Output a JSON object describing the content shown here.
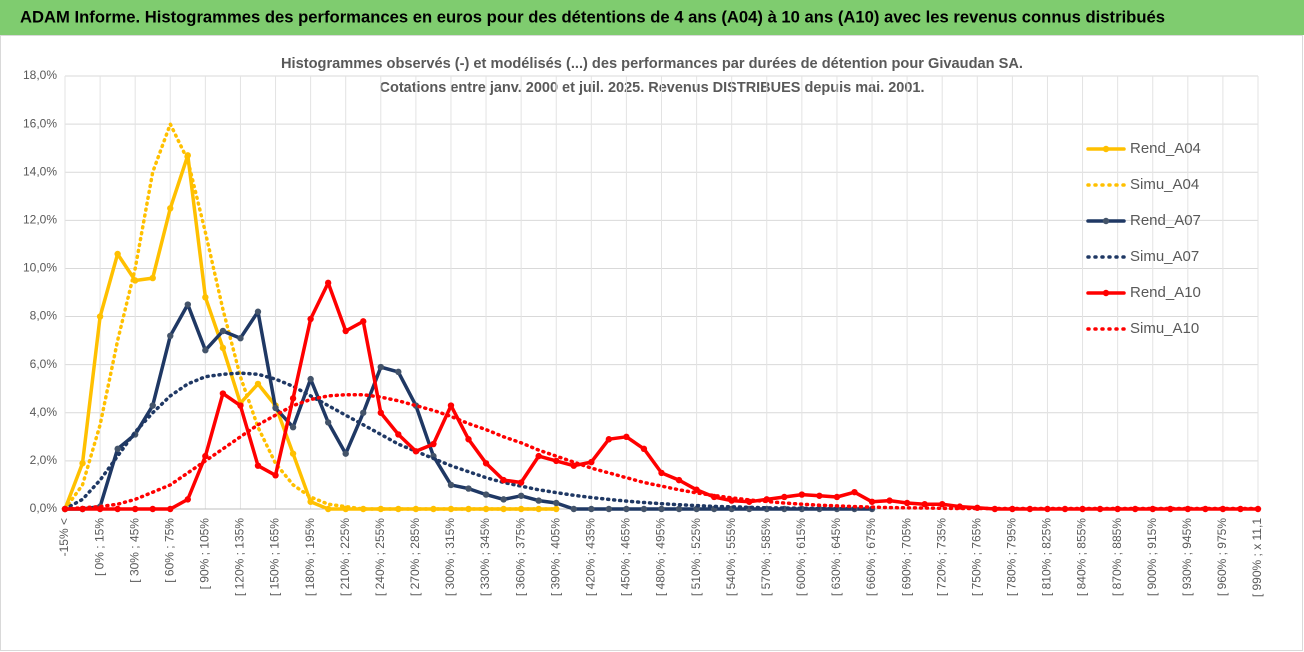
{
  "header": "ADAM Informe. Histogrammes des performances en euros pour des détentions de 4 ans (A04) à 10 ans (A10) avec les revenus connus distribués",
  "chart_data": {
    "type": "line",
    "title": [
      "Histogrammes observés (-) et modélisés (...) des performances par durées de détention pour Givaudan SA.",
      "Cotations entre janv. 2000 et juil. 2025. Revenus DISTRIBUES depuis mai. 2001."
    ],
    "categories": [
      "-15% <",
      null,
      "[ 0% ; 15%",
      null,
      "[ 30% ; 45%",
      null,
      "[ 60% ; 75%",
      null,
      "[ 90% ; 105%",
      null,
      "[ 120% ; 135%",
      null,
      "[ 150% ; 165%",
      null,
      "[ 180% ; 195%",
      null,
      "[ 210% ; 225%",
      null,
      "[ 240% ; 255%",
      null,
      "[ 270% ; 285%",
      null,
      "[ 300% ; 315%",
      null,
      "[ 330% ; 345%",
      null,
      "[ 360% ; 375%",
      null,
      "[ 390% ; 405%",
      null,
      "[ 420% ; 435%",
      null,
      "[ 450% ; 465%",
      null,
      "[ 480% ; 495%",
      null,
      "[ 510% ; 525%",
      null,
      "[ 540% ; 555%",
      null,
      "[ 570% ; 585%",
      null,
      "[ 600% ; 615%",
      null,
      "[ 630% ; 645%",
      null,
      "[ 660% ; 675%",
      null,
      "[ 690% ; 705%",
      null,
      "[ 720% ; 735%",
      null,
      "[ 750% ; 765%",
      null,
      "[ 780% ; 795%",
      null,
      "[ 810% ; 825%",
      null,
      "[ 840% ; 855%",
      null,
      "[ 870% ; 885%",
      null,
      "[ 900% ; 915%",
      null,
      "[ 930% ; 945%",
      null,
      "[ 960% ; 975%",
      null,
      "[ 990% ; x 11,1"
    ],
    "series": [
      {
        "name": "Rend_A04",
        "color": "#ffc000",
        "dotted": false,
        "markers": true,
        "values": [
          0,
          1.9,
          8.0,
          10.6,
          9.5,
          9.6,
          12.5,
          14.7,
          8.8,
          6.7,
          4.4,
          5.2,
          4.3,
          2.3,
          0.3,
          0,
          0,
          0,
          0,
          0,
          0,
          0,
          0,
          0,
          0,
          0,
          0,
          0,
          0,
          null,
          null,
          null,
          null,
          null,
          null,
          null,
          null,
          null,
          null,
          null,
          null,
          null,
          null,
          null,
          null,
          null,
          null,
          null,
          null,
          null,
          null,
          null,
          null,
          null,
          null,
          null,
          null,
          null,
          null,
          null,
          null,
          null,
          null,
          null,
          null,
          null,
          null,
          null,
          null
        ]
      },
      {
        "name": "Simu_A04",
        "color": "#ffc000",
        "dotted": true,
        "markers": false,
        "values": [
          0,
          1.0,
          3.5,
          7.0,
          10.0,
          14.0,
          16.0,
          14.5,
          11.5,
          8.3,
          5.5,
          3.4,
          1.9,
          1.0,
          0.5,
          0.2,
          0.1,
          0,
          0,
          0,
          0,
          0,
          0,
          0,
          0,
          0,
          0,
          0,
          0,
          null,
          null,
          null,
          null,
          null,
          null,
          null,
          null,
          null,
          null,
          null,
          null,
          null,
          null,
          null,
          null,
          null,
          null,
          null,
          null,
          null,
          null,
          null,
          null,
          null,
          null,
          null,
          null,
          null,
          null,
          null,
          null,
          null,
          null,
          null,
          null,
          null,
          null,
          null,
          null
        ]
      },
      {
        "name": "Rend_A07",
        "color": "#1f3864",
        "marker_color": "#44546a",
        "dotted": false,
        "markers": true,
        "values": [
          0,
          0,
          0.1,
          2.5,
          3.1,
          4.3,
          7.2,
          8.5,
          6.6,
          7.4,
          7.1,
          8.2,
          4.2,
          3.4,
          5.4,
          3.6,
          2.3,
          4.0,
          5.9,
          5.7,
          4.3,
          2.2,
          1.0,
          0.85,
          0.6,
          0.4,
          0.55,
          0.35,
          0.25,
          0,
          0,
          0,
          0,
          0,
          0,
          0,
          0,
          0,
          0,
          0,
          0,
          0,
          0,
          0,
          0,
          0,
          0,
          null,
          null,
          null,
          null,
          null,
          null,
          null,
          null,
          null,
          null,
          null,
          null,
          null,
          null,
          null,
          null,
          null,
          null,
          null,
          null,
          null,
          null
        ]
      },
      {
        "name": "Simu_A07",
        "color": "#1f3864",
        "dotted": true,
        "markers": false,
        "values": [
          0,
          0.4,
          1.2,
          2.2,
          3.2,
          4.0,
          4.7,
          5.2,
          5.5,
          5.6,
          5.65,
          5.6,
          5.4,
          5.1,
          4.7,
          4.3,
          3.9,
          3.5,
          3.1,
          2.7,
          2.4,
          2.1,
          1.8,
          1.55,
          1.3,
          1.1,
          0.95,
          0.8,
          0.68,
          0.57,
          0.48,
          0.4,
          0.33,
          0.27,
          0.22,
          0.18,
          0.14,
          0.11,
          0.09,
          0.07,
          0.05,
          0.04,
          0.03,
          0.02,
          0.02,
          0.01,
          0.01,
          null,
          null,
          null,
          null,
          null,
          null,
          null,
          null,
          null,
          null,
          null,
          null,
          null,
          null,
          null,
          null,
          null,
          null,
          null,
          null,
          null,
          null
        ]
      },
      {
        "name": "Rend_A10",
        "color": "#ff0000",
        "dotted": false,
        "markers": true,
        "values": [
          0,
          0,
          0,
          0,
          0,
          0,
          0,
          0.4,
          2.2,
          4.8,
          4.3,
          1.8,
          1.4,
          4.6,
          7.9,
          9.4,
          7.4,
          7.8,
          4.0,
          3.1,
          2.4,
          2.7,
          4.3,
          2.9,
          1.9,
          1.2,
          1.1,
          2.2,
          2.0,
          1.8,
          1.95,
          2.9,
          3.0,
          2.5,
          1.5,
          1.2,
          0.8,
          0.5,
          0.35,
          0.3,
          0.4,
          0.5,
          0.6,
          0.55,
          0.5,
          0.7,
          0.3,
          0.35,
          0.25,
          0.2,
          0.2,
          0.1,
          0.05,
          0,
          0,
          0,
          0,
          0,
          0,
          0,
          0,
          0,
          0,
          0,
          0,
          0,
          0,
          0,
          0
        ]
      },
      {
        "name": "Simu_A10",
        "color": "#ff0000",
        "dotted": true,
        "markers": false,
        "values": [
          0,
          0.05,
          0.1,
          0.2,
          0.4,
          0.7,
          1.0,
          1.5,
          2.0,
          2.5,
          3.0,
          3.5,
          3.9,
          4.3,
          4.55,
          4.7,
          4.75,
          4.75,
          4.65,
          4.5,
          4.3,
          4.1,
          3.85,
          3.55,
          3.3,
          3.0,
          2.75,
          2.45,
          2.2,
          1.95,
          1.7,
          1.5,
          1.3,
          1.1,
          0.95,
          0.8,
          0.67,
          0.56,
          0.46,
          0.38,
          0.31,
          0.25,
          0.2,
          0.16,
          0.13,
          0.1,
          0.08,
          0.06,
          0.05,
          0.04,
          0.03,
          0.02,
          0.02,
          0.02,
          0.02,
          0.02,
          0.02,
          0.02,
          0.02,
          0.02,
          0.02,
          0.02,
          0.02,
          0.02,
          0.02,
          0.02,
          0.02,
          0.02,
          0.02
        ]
      }
    ],
    "ylim": [
      0,
      18
    ],
    "yticks": [
      {
        "value": 0,
        "label": "0,0%"
      },
      {
        "value": 2,
        "label": "2,0%"
      },
      {
        "value": 4,
        "label": "4,0%"
      },
      {
        "value": 6,
        "label": "6,0%"
      },
      {
        "value": 8,
        "label": "8,0%"
      },
      {
        "value": 10,
        "label": "10,0%"
      },
      {
        "value": 12,
        "label": "12,0%"
      },
      {
        "value": 14,
        "label": "14,0%"
      },
      {
        "value": 16,
        "label": "16,0%"
      },
      {
        "value": 18,
        "label": "18,0%"
      }
    ],
    "grid": true,
    "legend": "right"
  }
}
